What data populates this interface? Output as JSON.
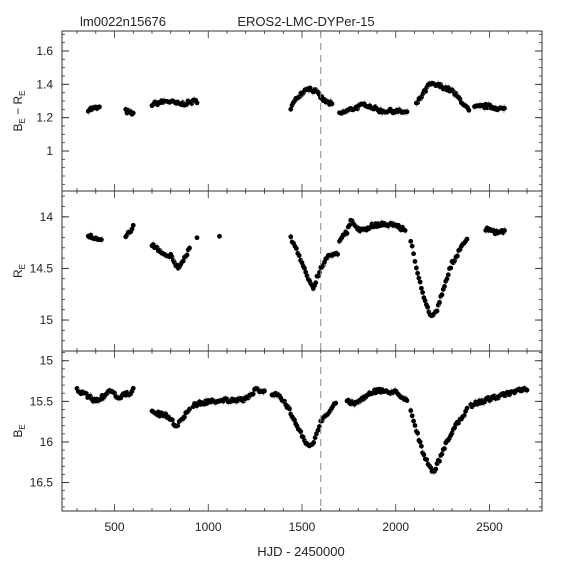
{
  "chart_data": {
    "type": "scatter",
    "header": {
      "left": "lm0022n15676",
      "center": "EROS2-LMC-DYPer-15"
    },
    "xlabel": "HJD - 2450000",
    "xlim": [
      220,
      2780
    ],
    "xticks": [
      500,
      1000,
      1500,
      2000,
      2500
    ],
    "xtick_labels": [
      "500",
      "1000",
      "1500",
      "2000",
      "2500"
    ],
    "vline_x": 1600,
    "panels": [
      {
        "name": "color",
        "ylabel": "B_E − R_E",
        "ylabel_main_1": "B",
        "ylabel_sub": "E",
        "ylabel_op": " − ",
        "ylabel_main_2": "R",
        "ylim": [
          1.72,
          0.76
        ],
        "yticks": [
          1.6,
          1.4,
          1.2,
          1
        ],
        "ytick_labels": [
          "1.6",
          "1.4",
          "1.2",
          "1"
        ],
        "minor_step": 0.05,
        "segments": [
          [
            [
              360,
              1.25
            ],
            [
              420,
              1.26
            ]
          ],
          [
            [
              560,
              1.24
            ],
            [
              600,
              1.22
            ]
          ],
          [
            [
              700,
              1.28
            ],
            [
              780,
              1.3
            ],
            [
              850,
              1.28
            ],
            [
              940,
              1.3
            ]
          ],
          [
            [
              1440,
              1.26
            ],
            [
              1480,
              1.33
            ],
            [
              1530,
              1.38
            ],
            [
              1570,
              1.36
            ],
            [
              1620,
              1.3
            ],
            [
              1660,
              1.28
            ]
          ],
          [
            [
              1700,
              1.22
            ],
            [
              1760,
              1.25
            ],
            [
              1840,
              1.28
            ],
            [
              1920,
              1.24
            ],
            [
              2000,
              1.24
            ],
            [
              2060,
              1.23
            ]
          ],
          [
            [
              2110,
              1.28
            ],
            [
              2180,
              1.4
            ],
            [
              2240,
              1.39
            ],
            [
              2300,
              1.36
            ],
            [
              2350,
              1.3
            ],
            [
              2390,
              1.24
            ]
          ],
          [
            [
              2420,
              1.26
            ],
            [
              2480,
              1.27
            ],
            [
              2580,
              1.25
            ]
          ]
        ]
      },
      {
        "name": "R",
        "ylabel": "R_E",
        "ylabel_main_1": "R",
        "ylabel_sub": "E",
        "ylabel_op": "",
        "ylabel_main_2": "",
        "ylim": [
          13.75,
          15.3
        ],
        "yticks": [
          14,
          14.5,
          15
        ],
        "ytick_labels": [
          "14",
          "14.5",
          "15"
        ],
        "minor_step": 0.1,
        "segments": [
          [
            [
              360,
              14.18
            ],
            [
              400,
              14.22
            ],
            [
              430,
              14.24
            ]
          ],
          [
            [
              560,
              14.18
            ],
            [
              600,
              14.1
            ]
          ],
          [
            [
              700,
              14.27
            ],
            [
              760,
              14.35
            ],
            [
              800,
              14.38
            ],
            [
              840,
              14.5
            ],
            [
              880,
              14.38
            ],
            [
              900,
              14.3
            ]
          ],
          [
            [
              940,
              14.2
            ]
          ],
          [
            [
              1060,
              14.2
            ]
          ],
          [
            [
              1440,
              14.2
            ],
            [
              1470,
              14.32
            ],
            [
              1500,
              14.46
            ],
            [
              1540,
              14.62
            ],
            [
              1560,
              14.68
            ],
            [
              1600,
              14.5
            ],
            [
              1640,
              14.37
            ],
            [
              1690,
              14.35
            ]
          ],
          [
            [
              1700,
              14.22
            ],
            [
              1740,
              14.15
            ],
            [
              1760,
              14.04
            ],
            [
              1790,
              14.1
            ],
            [
              1830,
              14.14
            ],
            [
              1880,
              14.08
            ],
            [
              1940,
              14.07
            ],
            [
              2000,
              14.08
            ],
            [
              2050,
              14.13
            ]
          ],
          [
            [
              2080,
              14.24
            ],
            [
              2110,
              14.48
            ],
            [
              2150,
              14.8
            ],
            [
              2190,
              14.97
            ],
            [
              2220,
              14.9
            ],
            [
              2260,
              14.66
            ],
            [
              2300,
              14.45
            ],
            [
              2350,
              14.3
            ],
            [
              2380,
              14.22
            ]
          ],
          [
            [
              2480,
              14.12
            ],
            [
              2530,
              14.15
            ],
            [
              2580,
              14.15
            ]
          ]
        ]
      },
      {
        "name": "B",
        "ylabel": "B_E",
        "ylabel_main_1": "B",
        "ylabel_sub": "E",
        "ylabel_op": "",
        "ylabel_main_2": "",
        "ylim": [
          14.88,
          16.85
        ],
        "yticks": [
          15,
          15.5,
          16,
          16.5
        ],
        "ytick_labels": [
          "15",
          "15.5",
          "16",
          "16.5"
        ],
        "minor_step": 0.1,
        "segments": [
          [
            [
              300,
              15.36
            ],
            [
              350,
              15.42
            ],
            [
              400,
              15.5
            ],
            [
              440,
              15.44
            ],
            [
              480,
              15.38
            ],
            [
              520,
              15.45
            ],
            [
              580,
              15.4
            ],
            [
              600,
              15.36
            ]
          ],
          [
            [
              700,
              15.62
            ],
            [
              740,
              15.66
            ],
            [
              780,
              15.68
            ],
            [
              830,
              15.8
            ],
            [
              860,
              15.72
            ],
            [
              880,
              15.65
            ],
            [
              900,
              15.6
            ]
          ],
          [
            [
              920,
              15.55
            ],
            [
              960,
              15.52
            ],
            [
              1020,
              15.5
            ],
            [
              1080,
              15.48
            ],
            [
              1140,
              15.5
            ],
            [
              1200,
              15.47
            ],
            [
              1260,
              15.35
            ],
            [
              1300,
              15.38
            ]
          ],
          [
            [
              1340,
              15.4
            ],
            [
              1380,
              15.44
            ],
            [
              1420,
              15.56
            ],
            [
              1460,
              15.72
            ],
            [
              1500,
              15.92
            ],
            [
              1540,
              16.07
            ],
            [
              1570,
              15.96
            ],
            [
              1600,
              15.76
            ],
            [
              1650,
              15.62
            ],
            [
              1680,
              15.5
            ]
          ],
          [
            [
              1740,
              15.5
            ],
            [
              1780,
              15.52
            ],
            [
              1820,
              15.48
            ],
            [
              1860,
              15.39
            ],
            [
              1920,
              15.37
            ],
            [
              2000,
              15.39
            ],
            [
              2060,
              15.48
            ]
          ],
          [
            [
              2080,
              15.62
            ],
            [
              2110,
              15.85
            ],
            [
              2150,
              16.18
            ],
            [
              2180,
              16.3
            ],
            [
              2200,
              16.38
            ],
            [
              2240,
              16.18
            ],
            [
              2280,
              15.96
            ],
            [
              2320,
              15.8
            ],
            [
              2350,
              15.72
            ],
            [
              2380,
              15.6
            ]
          ],
          [
            [
              2400,
              15.55
            ],
            [
              2460,
              15.5
            ],
            [
              2520,
              15.45
            ],
            [
              2580,
              15.42
            ],
            [
              2640,
              15.38
            ],
            [
              2700,
              15.35
            ]
          ]
        ]
      }
    ]
  }
}
